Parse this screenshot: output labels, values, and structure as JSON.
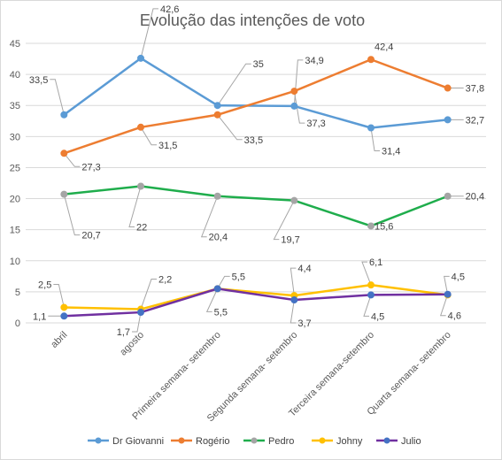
{
  "chart_data": {
    "type": "line",
    "title": "Evolução das intenções de voto",
    "xlabel": "",
    "ylabel": "",
    "ylim": [
      0,
      45
    ],
    "yticks": [
      0,
      5,
      10,
      15,
      20,
      25,
      30,
      35,
      40,
      45
    ],
    "grid": true,
    "legend_position": "bottom",
    "categories": [
      "abril",
      "agosto",
      "Primeira semana- setembro",
      "Segunda semana- setembro",
      "Terceira semana-setembro",
      "Quarta semana- setembro"
    ],
    "series": [
      {
        "name": "Dr Giovanni",
        "color": "#5b9bd5",
        "values": [
          33.5,
          42.6,
          35,
          34.9,
          31.4,
          32.7
        ],
        "labels": [
          "33,5",
          "42,6",
          "35",
          "34,9",
          "31,4",
          "32,7"
        ]
      },
      {
        "name": "Rogério",
        "color": "#ed7d31",
        "values": [
          27.3,
          31.5,
          33.5,
          37.3,
          42.4,
          37.8
        ],
        "labels": [
          "27,3",
          "31,5",
          "33,5",
          "37,3",
          "42,4",
          "37,8"
        ]
      },
      {
        "name": "Pedro",
        "color": "#1fad4c",
        "marker_color": "#a5a5a5",
        "values": [
          20.7,
          22,
          20.4,
          19.7,
          15.6,
          20.4
        ],
        "labels": [
          "20,7",
          "22",
          "20,4",
          "19,7",
          "15,6",
          "20,4"
        ]
      },
      {
        "name": "Johny",
        "color": "#ffc000",
        "values": [
          2.5,
          2.2,
          5.5,
          4.4,
          6.1,
          4.5
        ],
        "labels": [
          "2,5",
          "2,2",
          "5,5",
          "4,4",
          "6,1",
          "4,5"
        ]
      },
      {
        "name": "Julio",
        "color": "#7030a0",
        "marker_color": "#4472c4",
        "values": [
          1.1,
          1.7,
          5.5,
          3.7,
          4.5,
          4.6
        ],
        "labels": [
          "1,1",
          "1,7",
          "5,5",
          "3,7",
          "4,5",
          "4,6"
        ]
      }
    ]
  }
}
